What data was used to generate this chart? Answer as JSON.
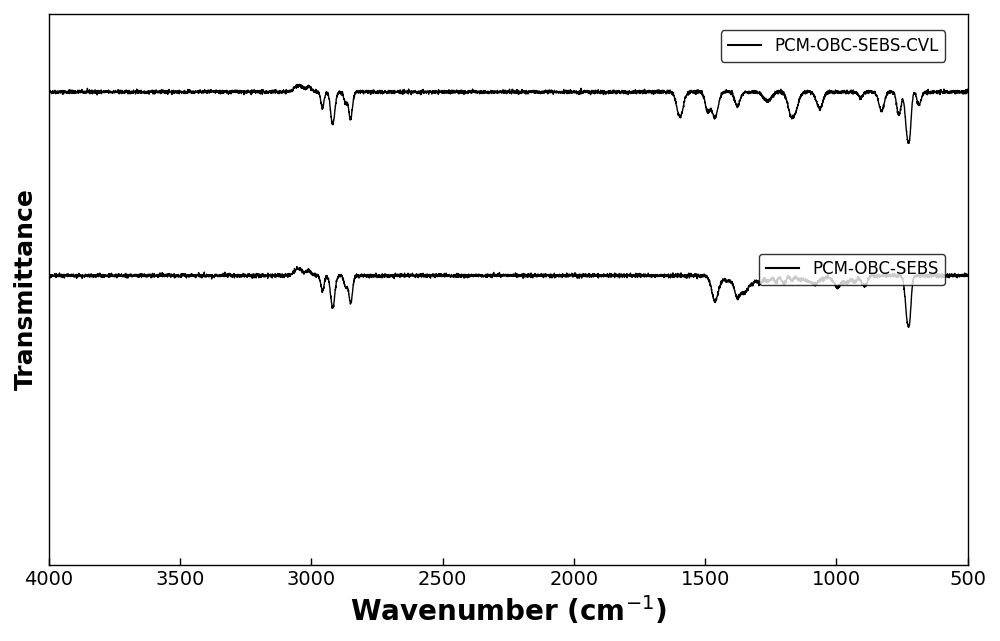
{
  "xlabel": "Wavenumber (cm$^{-1}$)",
  "ylabel": "Transmittance",
  "xlim": [
    4000,
    500
  ],
  "ylim_plot": [
    -0.05,
    1.05
  ],
  "xticks": [
    4000,
    3500,
    3000,
    2500,
    2000,
    1500,
    1000,
    500
  ],
  "background_color": "#ffffff",
  "line_color": "#000000",
  "legend1_label": "PCM-OBC-SEBS-CVL",
  "legend2_label": "PCM-OBC-SEBS",
  "xlabel_fontsize": 20,
  "ylabel_fontsize": 18,
  "tick_fontsize": 14,
  "legend_fontsize": 12
}
